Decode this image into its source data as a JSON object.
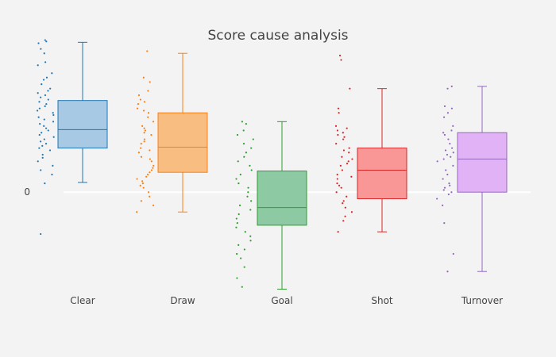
{
  "chart_data": {
    "type": "box",
    "title": "Score cause analysis",
    "xlabel": "",
    "ylabel": "",
    "categories": [
      "Clear",
      "Draw",
      "Goal",
      "Shot",
      "Turnover"
    ],
    "y_tick_labels": [
      "0"
    ],
    "ylim": [
      -2.3,
      3.1
    ],
    "grid": false,
    "legend": "none",
    "series": [
      {
        "color": "#1f77b4",
        "fill": "#a8c9e3",
        "box": {
          "lower_fence": 0.22,
          "q1": 1.0,
          "median": 1.42,
          "q3": 2.08,
          "upper_fence": 3.4
        },
        "points": [
          3.45,
          3.42,
          3.38,
          3.25,
          3.15,
          2.95,
          2.88,
          2.7,
          2.6,
          2.55,
          2.45,
          2.35,
          2.3,
          2.25,
          2.2,
          2.15,
          2.1,
          2.05,
          2.0,
          1.95,
          1.9,
          1.85,
          1.8,
          1.75,
          1.7,
          1.65,
          1.6,
          1.55,
          1.5,
          1.45,
          1.4,
          1.35,
          1.3,
          1.25,
          1.2,
          1.15,
          1.1,
          1.05,
          1.0,
          0.95,
          0.85,
          0.78,
          0.7,
          0.6,
          0.5,
          0.4,
          0.2,
          -0.95
        ]
      },
      {
        "color": "#ff7f0e",
        "fill": "#f8be81",
        "box": {
          "lower_fence": -0.45,
          "q1": 0.45,
          "median": 1.02,
          "q3": 1.8,
          "upper_fence": 3.15
        },
        "points": [
          3.2,
          2.6,
          2.5,
          2.3,
          2.2,
          2.1,
          2.05,
          2.0,
          1.9,
          1.85,
          1.8,
          1.7,
          1.6,
          1.5,
          1.45,
          1.4,
          1.35,
          1.3,
          1.2,
          1.15,
          1.1,
          1.0,
          0.95,
          0.9,
          0.8,
          0.75,
          0.7,
          0.6,
          0.55,
          0.5,
          0.45,
          0.4,
          0.35,
          0.3,
          0.25,
          0.2,
          0.15,
          0.1,
          0.0,
          -0.1,
          -0.2,
          -0.3,
          -0.45
        ]
      },
      {
        "color": "#2ca02c",
        "fill": "#8dc9a3",
        "box": {
          "lower_fence": -2.2,
          "q1": -0.75,
          "median": -0.35,
          "q3": 0.48,
          "upper_fence": 1.6
        },
        "points": [
          1.6,
          1.55,
          1.4,
          1.3,
          1.2,
          1.1,
          1.0,
          0.9,
          0.8,
          0.7,
          0.6,
          0.5,
          0.4,
          0.3,
          0.2,
          0.1,
          0.0,
          -0.1,
          -0.2,
          -0.3,
          -0.4,
          -0.5,
          -0.6,
          -0.7,
          -0.8,
          -0.9,
          -1.0,
          -1.1,
          -1.2,
          -1.3,
          -1.4,
          -1.5,
          -1.7,
          -1.95,
          -2.15
        ]
      },
      {
        "color": "#d62728",
        "fill": "#f89795",
        "box": {
          "lower_fence": -0.9,
          "q1": -0.15,
          "median": 0.5,
          "q3": 1.0,
          "upper_fence": 2.35
        },
        "points": [
          3.1,
          3.0,
          2.35,
          1.9,
          1.8,
          1.5,
          1.45,
          1.4,
          1.35,
          1.3,
          1.25,
          1.2,
          1.1,
          1.0,
          0.95,
          0.9,
          0.8,
          0.75,
          0.7,
          0.65,
          0.6,
          0.5,
          0.4,
          0.35,
          0.3,
          0.2,
          0.15,
          0.1,
          0.0,
          -0.1,
          -0.2,
          -0.25,
          -0.35,
          -0.45,
          -0.55,
          -0.65,
          -0.9
        ]
      },
      {
        "color": "#9467bd",
        "fill": "#e1b2f6",
        "box": {
          "lower_fence": -1.8,
          "q1": 0.0,
          "median": 0.75,
          "q3": 1.35,
          "upper_fence": 2.4
        },
        "points": [
          2.4,
          2.35,
          1.95,
          1.9,
          1.8,
          1.7,
          1.5,
          1.4,
          1.35,
          1.3,
          1.2,
          1.1,
          1.0,
          0.95,
          0.9,
          0.85,
          0.8,
          0.75,
          0.7,
          0.6,
          0.5,
          0.4,
          0.3,
          0.2,
          0.15,
          0.1,
          0.05,
          0.0,
          -0.05,
          -0.15,
          -0.3,
          -0.7,
          -1.4,
          -1.8
        ]
      }
    ]
  }
}
